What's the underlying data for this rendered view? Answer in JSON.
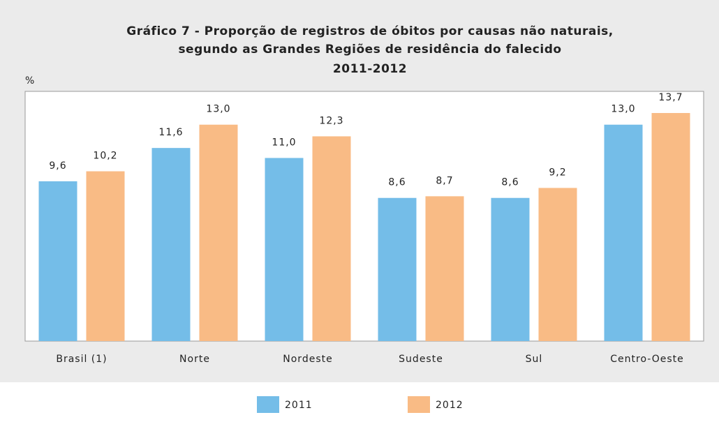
{
  "chart_data": {
    "type": "bar",
    "title": [
      "Gráfico 7 - Proporção de registros de óbitos por causas não naturais,",
      "segundo as Grandes Regiões de residência do falecido",
      "2011-2012"
    ],
    "y_label": "%",
    "categories": [
      "Brasil (1)",
      "Norte",
      "Nordeste",
      "Sudeste",
      "Sul",
      "Centro-Oeste"
    ],
    "series": [
      {
        "name": "2011",
        "color": "#74bde8",
        "values": [
          9.6,
          11.6,
          11.0,
          8.6,
          8.6,
          13.0
        ],
        "value_labels": [
          "9,6",
          "11,6",
          "11,0",
          "8,6",
          "8,6",
          "13,0"
        ]
      },
      {
        "name": "2012",
        "color": "#f9bb85",
        "values": [
          10.2,
          13.0,
          12.3,
          8.7,
          9.2,
          13.7
        ],
        "value_labels": [
          "10,2",
          "13,0",
          "12,3",
          "8,7",
          "9,2",
          "13,7"
        ]
      }
    ],
    "ylim": [
      0,
      15
    ]
  }
}
